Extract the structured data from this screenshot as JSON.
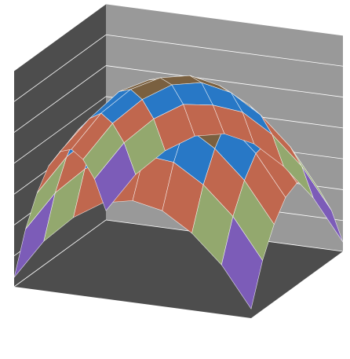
{
  "chart_data": {
    "type": "surface",
    "values": [
      [
        0.3,
        1.6,
        2.5,
        3.1,
        3.3,
        3.1,
        2.5,
        1.6,
        0.3
      ],
      [
        1.6,
        2.9,
        3.8,
        4.4,
        4.5,
        4.4,
        3.8,
        2.9,
        1.6
      ],
      [
        2.5,
        3.8,
        4.7,
        5.3,
        5.5,
        5.3,
        4.7,
        3.8,
        2.5
      ],
      [
        3.1,
        4.4,
        5.3,
        5.8,
        6.0,
        5.8,
        5.3,
        4.4,
        3.1
      ],
      [
        3.3,
        4.5,
        5.5,
        6.0,
        6.2,
        6.0,
        5.5,
        4.5,
        3.3
      ],
      [
        3.1,
        4.4,
        5.3,
        5.8,
        6.0,
        5.8,
        5.3,
        4.4,
        3.1
      ],
      [
        2.5,
        3.8,
        4.7,
        5.3,
        5.5,
        5.3,
        4.7,
        3.8,
        2.5
      ],
      [
        1.6,
        2.9,
        3.8,
        4.4,
        4.5,
        4.4,
        3.8,
        2.9,
        1.6
      ],
      [
        0.3,
        1.6,
        2.5,
        3.1,
        3.3,
        3.1,
        2.5,
        1.6,
        0.3
      ]
    ],
    "zlim": [
      0,
      7
    ],
    "zticks": [
      0,
      1,
      2,
      3,
      4,
      5,
      6,
      7
    ],
    "band_colors": [
      "#5bbcc4",
      "#7c5cb8",
      "#93a86e",
      "#c0674e",
      "#2878c6",
      "#7a6040",
      "#7a6040"
    ],
    "grid": true
  }
}
